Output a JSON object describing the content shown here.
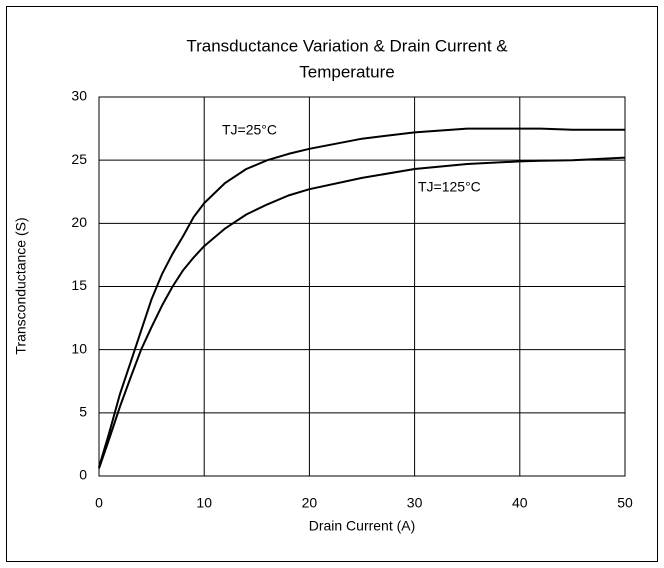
{
  "chart_data": {
    "type": "line",
    "title": [
      "Transductance Variation & Drain Current  &",
      "Temperature"
    ],
    "x_label": "Drain Current (A)",
    "y_label": "Transconductance (S)",
    "x": [
      0,
      1,
      2,
      3,
      4,
      5,
      6,
      7,
      8,
      9,
      10,
      12,
      14,
      16,
      18,
      20,
      25,
      30,
      35,
      40,
      42,
      45,
      50
    ],
    "series": [
      {
        "name": "TJ=25°C",
        "color": "#000000",
        "values": [
          0.7,
          3.5,
          6.5,
          9,
          11.5,
          14,
          16,
          17.6,
          19,
          20.5,
          21.6,
          23.2,
          24.3,
          25,
          25.5,
          25.9,
          26.7,
          27.2,
          27.5,
          27.5,
          27.5,
          27.4,
          27.4
        ]
      },
      {
        "name": "TJ=125°C",
        "color": "#000000",
        "values": [
          0.6,
          3,
          5.5,
          7.8,
          10,
          11.8,
          13.5,
          15,
          16.3,
          17.3,
          18.2,
          19.6,
          20.7,
          21.5,
          22.2,
          22.7,
          23.6,
          24.3,
          24.7,
          24.9,
          24.95,
          25,
          25.2
        ]
      }
    ],
    "xlim": [
      0,
      50
    ],
    "xticks": [
      0,
      10,
      20,
      30,
      40,
      50
    ],
    "ylim": [
      0,
      30
    ],
    "yticks": [
      0,
      5,
      10,
      15,
      20,
      25,
      30
    ],
    "grid": true
  }
}
